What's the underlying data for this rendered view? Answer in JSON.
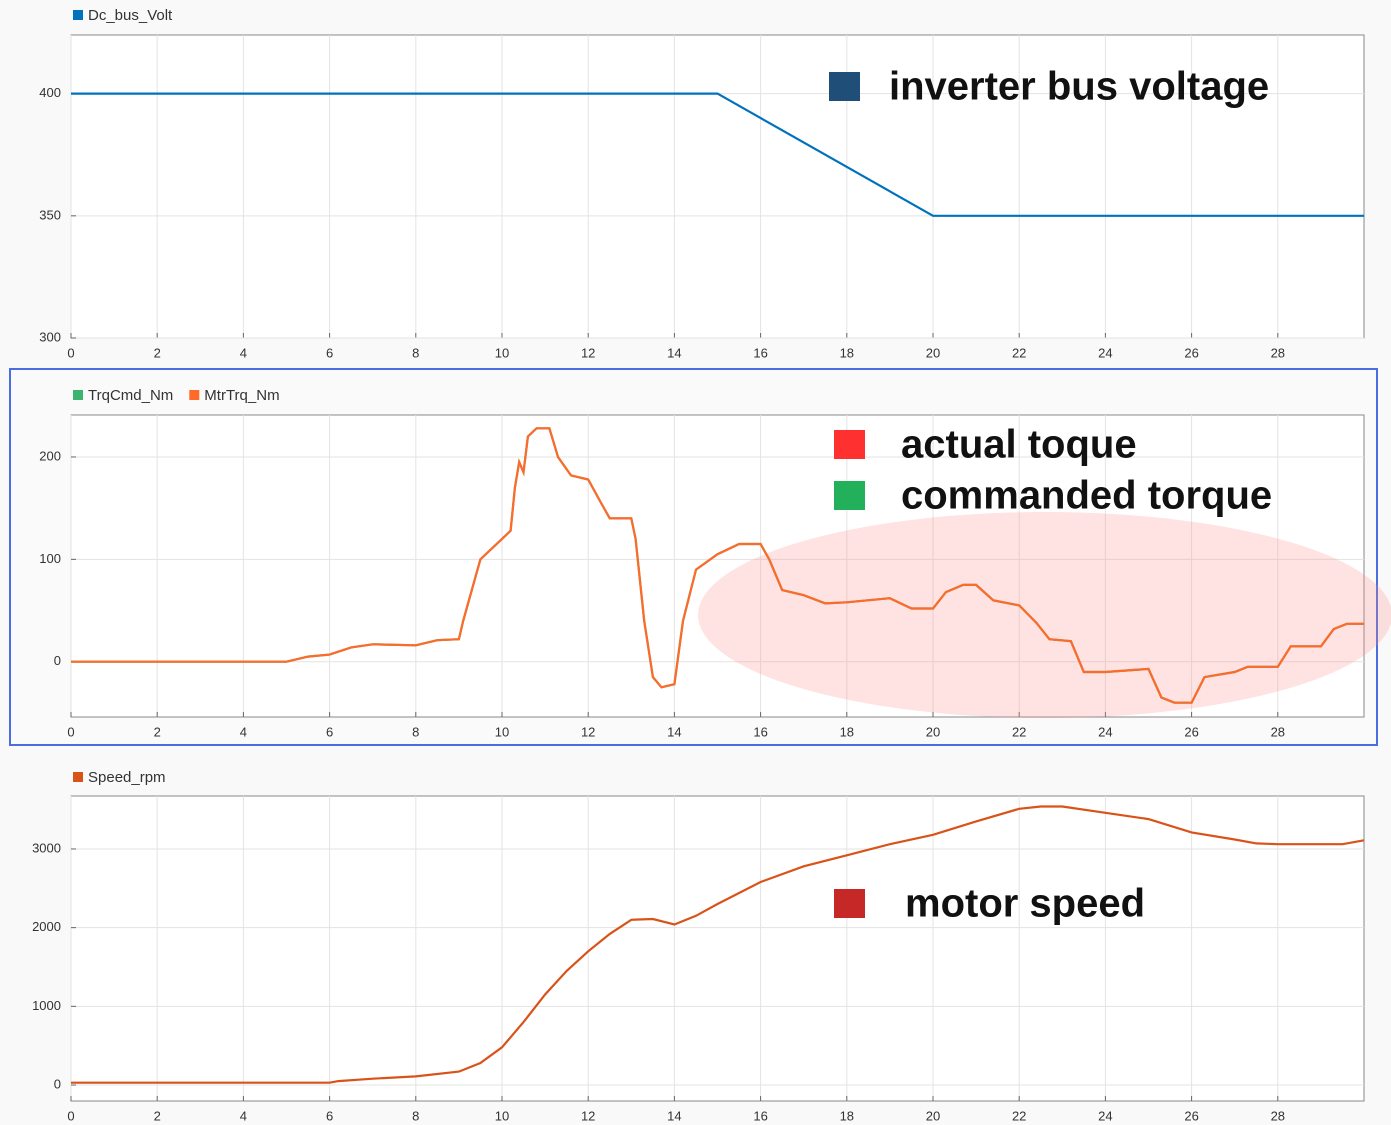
{
  "chart_data": [
    {
      "type": "line",
      "series": [
        {
          "name": "Dc_bus_Volt",
          "color": "#0072bd",
          "x": [
            0,
            15,
            20,
            30
          ],
          "values": [
            400,
            400,
            350,
            350
          ]
        }
      ],
      "xlim": [
        0,
        30
      ],
      "xticks": [
        0,
        2,
        4,
        6,
        8,
        10,
        12,
        14,
        16,
        18,
        20,
        22,
        24,
        26,
        28
      ],
      "ylim": [
        300,
        424
      ],
      "yticks": [
        300,
        350,
        400
      ],
      "grid": true,
      "annotations": [
        {
          "text": "inverter bus voltage",
          "color": "#1f4e79"
        }
      ]
    },
    {
      "type": "line",
      "series": [
        {
          "name": "TrqCmd_Nm",
          "color": "#3cb371",
          "x": [
            0,
            5,
            5.5,
            6,
            6.5,
            7,
            8,
            8.5,
            9,
            9.1,
            9.5,
            10,
            10.2,
            10.3,
            10.4,
            10.5,
            10.6,
            10.8,
            11.1,
            11.3,
            11.6,
            12,
            12.3,
            12.5,
            13,
            13.1,
            13.3,
            13.5,
            13.7,
            14,
            14.2,
            14.5,
            15,
            15.5,
            16,
            16.2,
            16.5,
            17,
            17.5,
            18,
            19,
            19.5,
            20,
            20.3,
            20.7,
            21,
            21.4,
            22,
            22.4,
            22.7,
            23.2,
            23.5,
            24,
            25,
            25.3,
            25.6,
            26,
            26.3,
            27,
            27.3,
            28,
            28.3,
            29,
            29.3,
            29.6,
            30
          ],
          "values": [
            0,
            0,
            5,
            7,
            14,
            17,
            16,
            21,
            22,
            40,
            100,
            120,
            128,
            170,
            195,
            185,
            220,
            228,
            228,
            200,
            182,
            178,
            155,
            140,
            140,
            120,
            40,
            -15,
            -25,
            -22,
            40,
            90,
            105,
            115,
            115,
            100,
            70,
            65,
            57,
            58,
            62,
            52,
            52,
            68,
            75,
            75,
            60,
            55,
            38,
            22,
            20,
            -10,
            -10,
            -7,
            -35,
            -40,
            -40,
            -15,
            -10,
            -5,
            -5,
            15,
            15,
            32,
            37,
            37
          ]
        },
        {
          "name": "MtrTrq_Nm",
          "color": "#ff6a2b",
          "x": [
            0,
            5,
            5.5,
            6,
            6.5,
            7,
            8,
            8.5,
            9,
            9.1,
            9.5,
            10,
            10.2,
            10.3,
            10.4,
            10.5,
            10.6,
            10.8,
            11.1,
            11.3,
            11.6,
            12,
            12.3,
            12.5,
            13,
            13.1,
            13.3,
            13.5,
            13.7,
            14,
            14.2,
            14.5,
            15,
            15.5,
            16,
            16.2,
            16.5,
            17,
            17.5,
            18,
            19,
            19.5,
            20,
            20.3,
            20.7,
            21,
            21.4,
            22,
            22.4,
            22.7,
            23.2,
            23.5,
            24,
            25,
            25.3,
            25.6,
            26,
            26.3,
            27,
            27.3,
            28,
            28.3,
            29,
            29.3,
            29.6,
            30
          ],
          "values": [
            0,
            0,
            5,
            7,
            14,
            17,
            16,
            21,
            22,
            40,
            100,
            120,
            128,
            170,
            195,
            185,
            220,
            228,
            228,
            200,
            182,
            178,
            155,
            140,
            140,
            120,
            40,
            -15,
            -25,
            -22,
            40,
            90,
            105,
            115,
            115,
            100,
            70,
            65,
            57,
            58,
            62,
            52,
            52,
            68,
            75,
            75,
            60,
            55,
            38,
            22,
            20,
            -10,
            -10,
            -7,
            -35,
            -40,
            -40,
            -15,
            -10,
            -5,
            -5,
            15,
            15,
            32,
            37,
            37
          ]
        }
      ],
      "xlim": [
        0,
        30
      ],
      "xticks": [
        0,
        2,
        4,
        6,
        8,
        10,
        12,
        14,
        16,
        18,
        20,
        22,
        24,
        26,
        28
      ],
      "ylim": [
        -54,
        241
      ],
      "yticks": [
        0,
        100,
        200
      ],
      "grid": true,
      "annotations": [
        {
          "text": "actual toque",
          "color": "#ff3030"
        },
        {
          "text": "commanded torque",
          "color": "#22b05a"
        }
      ]
    },
    {
      "type": "line",
      "series": [
        {
          "name": "Speed_rpm",
          "color": "#d95319",
          "x": [
            0,
            6,
            6.2,
            7,
            8,
            9,
            9.5,
            10,
            10.5,
            11,
            11.5,
            12,
            12.5,
            13,
            13.5,
            14,
            14.5,
            15,
            16,
            17,
            18,
            19,
            20,
            21,
            22,
            22.5,
            23,
            24,
            25,
            26,
            27,
            27.5,
            28,
            29.5,
            30
          ],
          "values": [
            30,
            30,
            50,
            80,
            110,
            170,
            280,
            480,
            800,
            1150,
            1450,
            1700,
            1920,
            2100,
            2110,
            2040,
            2150,
            2300,
            2580,
            2780,
            2920,
            3060,
            3180,
            3350,
            3510,
            3540,
            3540,
            3460,
            3380,
            3210,
            3120,
            3070,
            3060,
            3060,
            3110
          ]
        }
      ],
      "xlim": [
        0,
        30
      ],
      "xticks": [
        0,
        2,
        4,
        6,
        8,
        10,
        12,
        14,
        16,
        18,
        20,
        22,
        24,
        26,
        28
      ],
      "ylim": [
        -203,
        3673
      ],
      "yticks": [
        0,
        1000,
        2000,
        3000
      ],
      "grid": true,
      "annotations": [
        {
          "text": "motor speed",
          "color": "#c62828"
        }
      ]
    }
  ]
}
